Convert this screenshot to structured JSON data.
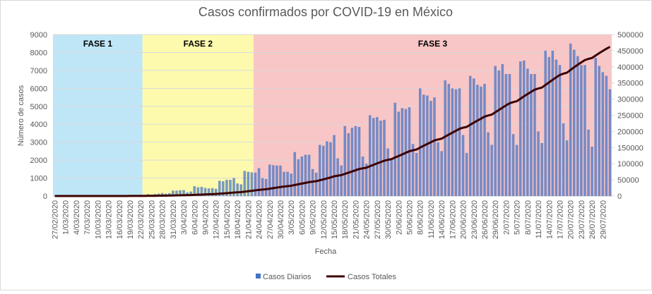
{
  "chart_data": {
    "type": "bar_line",
    "title": "Casos confirmados por COVID-19 en México",
    "x_label": "Fecha",
    "y_label": "Número de casos",
    "ylim": [
      0,
      9000
    ],
    "yticks": [
      0,
      1000,
      2000,
      3000,
      4000,
      5000,
      6000,
      7000,
      8000,
      9000
    ],
    "y2lim": [
      0,
      500000
    ],
    "y2ticks": [
      0,
      50000,
      100000,
      150000,
      200000,
      250000,
      300000,
      350000,
      400000,
      450000,
      500000
    ],
    "grid": true,
    "legend": "bottom",
    "phases": [
      {
        "label": "FASE 1",
        "from": 0,
        "to": 25,
        "color": "#bfe6f7"
      },
      {
        "label": "FASE 2",
        "from": 25,
        "to": 56,
        "color": "#fdfaae"
      },
      {
        "label": "FASE 3",
        "from": 56,
        "to": 156,
        "color": "#f8c6c6"
      }
    ],
    "categories": [
      "27/02/2020",
      null,
      null,
      "1/03/2020",
      null,
      null,
      "4/03/2020",
      null,
      null,
      "7/03/2020",
      null,
      null,
      "10/03/2020",
      null,
      null,
      "13/03/2020",
      null,
      null,
      "16/03/2020",
      null,
      null,
      "19/03/2020",
      null,
      null,
      "22/03/2020",
      null,
      null,
      "25/03/2020",
      null,
      null,
      "28/03/2020",
      null,
      null,
      "31/03/2020",
      null,
      null,
      "3/04/2020",
      null,
      null,
      "6/04/2020",
      null,
      null,
      "9/04/2020",
      null,
      null,
      "12/04/2020",
      null,
      null,
      "15/04/2020",
      null,
      null,
      "18/04/2020",
      null,
      null,
      "21/04/2020",
      null,
      null,
      "24/04/2020",
      null,
      null,
      "27/04/2020",
      null,
      null,
      "30/04/2020",
      null,
      null,
      "3/05/2020",
      null,
      null,
      "6/05/2020",
      null,
      null,
      "9/05/2020",
      null,
      null,
      "12/05/2020",
      null,
      null,
      "15/05/2020",
      null,
      null,
      "18/05/2020",
      null,
      null,
      "21/05/2020",
      null,
      null,
      "24/05/2020",
      null,
      null,
      "27/05/2020",
      null,
      null,
      "30/05/2020",
      null,
      null,
      "2/06/2020",
      null,
      null,
      "5/06/2020",
      null,
      null,
      "8/06/2020",
      null,
      null,
      "11/06/2020",
      null,
      null,
      "14/06/2020",
      null,
      null,
      "17/06/2020",
      null,
      null,
      "20/06/2020",
      null,
      null,
      "23/06/2020",
      null,
      null,
      "26/06/2020",
      null,
      null,
      "29/06/2020",
      null,
      null,
      "2/07/2020",
      null,
      null,
      "5/07/2020",
      null,
      null,
      "8/07/2020",
      null,
      null,
      "11/07/2020",
      null,
      null,
      "14/07/2020",
      null,
      null,
      "17/07/2020",
      null,
      null,
      "20/07/2020",
      null,
      null,
      "23/07/2020",
      null,
      null,
      "26/07/2020",
      null,
      null,
      "29/07/2020",
      null,
      null
    ],
    "series": [
      {
        "name": "Casos Diarios",
        "color": "#4472c4",
        "kind": "bar",
        "values": [
          1,
          1,
          2,
          0,
          1,
          0,
          0,
          0,
          2,
          0,
          0,
          1,
          0,
          1,
          3,
          4,
          15,
          12,
          29,
          11,
          25,
          47,
          46,
          48,
          70,
          64,
          101,
          70,
          110,
          132,
          168,
          130,
          160,
          300,
          300,
          320,
          330,
          200,
          250,
          550,
          490,
          510,
          450,
          420,
          440,
          400,
          850,
          820,
          900,
          900,
          1000,
          700,
          650,
          1400,
          1350,
          1320,
          1300,
          1550,
          1000,
          950,
          1750,
          1720,
          1700,
          1700,
          1350,
          1350,
          1250,
          2450,
          2050,
          2200,
          2300,
          2300,
          1500,
          1300,
          2850,
          2800,
          3050,
          3000,
          3400,
          2100,
          1700,
          3900,
          3500,
          3800,
          3900,
          3850,
          2200,
          1800,
          4500,
          4350,
          4400,
          4200,
          4250,
          2650,
          2000,
          5200,
          4700,
          4900,
          4850,
          4950,
          2900,
          2400,
          6000,
          5650,
          5600,
          5300,
          5500,
          3000,
          2500,
          6450,
          6250,
          6000,
          5950,
          6000,
          3400,
          2400,
          6700,
          6550,
          6200,
          6100,
          6250,
          3550,
          2850,
          7250,
          7000,
          7350,
          6800,
          6800,
          3450,
          2850,
          7500,
          7550,
          7100,
          6800,
          6800,
          3600,
          2950,
          8100,
          7750,
          8100,
          7600,
          7300,
          4050,
          3100,
          8500,
          8150,
          7800,
          7300,
          7300,
          3700,
          2750,
          7700,
          7250,
          6900,
          6700,
          5950
        ]
      },
      {
        "name": "Casos Totales",
        "color": "#3d0000",
        "kind": "line",
        "axis": "y2",
        "values": [
          1,
          2,
          4,
          4,
          5,
          5,
          5,
          5,
          7,
          7,
          7,
          8,
          8,
          9,
          12,
          16,
          31,
          43,
          72,
          83,
          108,
          155,
          201,
          249,
          319,
          383,
          484,
          554,
          664,
          796,
          964,
          1094,
          1254,
          1554,
          1854,
          2174,
          2504,
          2704,
          2954,
          3504,
          3994,
          4504,
          4954,
          5374,
          5814,
          6214,
          7064,
          7884,
          8784,
          9684,
          10684,
          11384,
          12034,
          13434,
          14784,
          16104,
          17404,
          18954,
          19954,
          20904,
          22654,
          24374,
          26074,
          27774,
          29124,
          30474,
          31724,
          34174,
          36224,
          38424,
          40724,
          43024,
          44524,
          45824,
          48674,
          51474,
          54524,
          57524,
          60924,
          63024,
          64724,
          68624,
          72124,
          75924,
          79824,
          83674,
          85874,
          87674,
          92174,
          96524,
          100924,
          105124,
          109374,
          112024,
          114024,
          119224,
          123924,
          128824,
          133674,
          138624,
          141524,
          143924,
          149924,
          155574,
          161174,
          166474,
          171974,
          174974,
          177474,
          183924,
          190174,
          196174,
          202124,
          208124,
          211524,
          213924,
          220624,
          227174,
          233374,
          239474,
          245724,
          249274,
          252124,
          259374,
          266374,
          273724,
          280524,
          287324,
          290774,
          293624,
          301124,
          308674,
          315774,
          322574,
          329374,
          332974,
          335924,
          344024,
          351774,
          359874,
          367474,
          374774,
          378824,
          381924,
          390424,
          398574,
          406374,
          413674,
          420974,
          424674,
          427424,
          435124,
          442374,
          449274,
          455974,
          461924
        ]
      }
    ]
  }
}
